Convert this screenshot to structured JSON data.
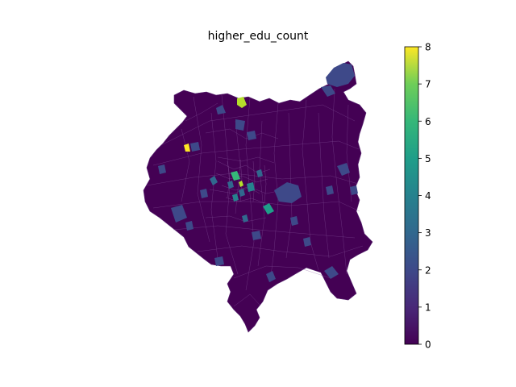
{
  "map": {
    "title": "higher_edu_count",
    "colormap": "viridis",
    "highlights": [
      {
        "value": 8,
        "color": "#fde725"
      },
      {
        "value": 7,
        "color": "#b5de2b"
      },
      {
        "value": 6,
        "color": "#6ece58"
      },
      {
        "value": 5,
        "color": "#35b779"
      },
      {
        "value": 4,
        "color": "#1f9e89"
      },
      {
        "value": 3,
        "color": "#26828e"
      },
      {
        "value": 2,
        "color": "#31688e"
      },
      {
        "value": 1,
        "color": "#3e4989"
      }
    ],
    "base_color": "#440154",
    "edge_color": "#8a5aa0"
  },
  "colorbar": {
    "min": 0,
    "max": 8,
    "ticks": [
      "0",
      "1",
      "2",
      "3",
      "4",
      "5",
      "6",
      "7",
      "8"
    ]
  }
}
